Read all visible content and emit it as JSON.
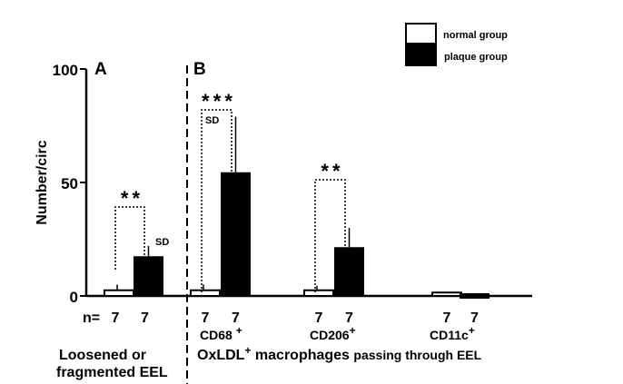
{
  "chart_data": {
    "type": "bar",
    "ylabel": "Number/circ",
    "ylim": [
      0,
      100
    ],
    "yticks": [
      "0",
      "50",
      "100"
    ],
    "panels": [
      "A",
      "B"
    ],
    "n_prefix": "n=",
    "legend": {
      "placement": "top-right",
      "entries": [
        {
          "name": "normal group",
          "color": "#ffffff"
        },
        {
          "name": "plaque group",
          "color": "#000000"
        }
      ]
    },
    "groups": [
      {
        "id": "eel",
        "label": "",
        "normal": 2.5,
        "normal_sd": 5,
        "plaque": 17.5,
        "plaque_sd": 22,
        "n": [
          "7",
          "7"
        ],
        "sig": "* *",
        "sd_label": "SD"
      },
      {
        "id": "cd68",
        "label": "CD68 +",
        "normal": 2.5,
        "normal_sd": 5,
        "plaque": 54.5,
        "plaque_sd": 79,
        "n": [
          "7",
          "7"
        ],
        "sig": "* * *",
        "sd_label": "SD"
      },
      {
        "id": "cd206",
        "label": "CD206+",
        "normal": 2.5,
        "normal_sd": 4.5,
        "plaque": 21.5,
        "plaque_sd": 30,
        "n": [
          "7",
          "7"
        ],
        "sig": "* *",
        "sd_label": ""
      },
      {
        "id": "cd11c",
        "label": "CD11c+",
        "normal": 1.5,
        "normal_sd": 1.5,
        "plaque": 1.2,
        "plaque_sd": 1.2,
        "n": [
          "7",
          "7"
        ],
        "sig": "",
        "sd_label": ""
      }
    ],
    "xlabel_a": [
      "Loosened or",
      "fragmented EEL"
    ],
    "xlabel_b": "OxLDL+ macrophages passing through EEL"
  }
}
